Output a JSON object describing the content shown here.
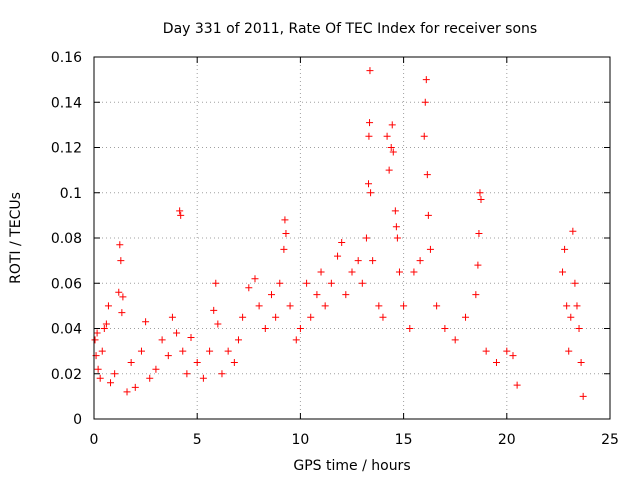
{
  "chart_data": {
    "type": "scatter",
    "title": "Day 331 of 2011, Rate Of TEC Index for receiver sons",
    "xlabel": "GPS time / hours",
    "ylabel": "ROTI / TECUs",
    "xlim": [
      0,
      25
    ],
    "ylim": [
      0,
      0.16
    ],
    "xticks": [
      0,
      5,
      10,
      15,
      20,
      25
    ],
    "xtick_labels": [
      "0",
      "5",
      "10",
      "15",
      "20",
      "25"
    ],
    "yticks": [
      0,
      0.02,
      0.04,
      0.06,
      0.08,
      0.1,
      0.12,
      0.14,
      0.16
    ],
    "ytick_labels": [
      "0",
      "0.02",
      "0.04",
      "0.06",
      "0.08",
      "0.1",
      "0.12",
      "0.14",
      "0.16"
    ],
    "grid": true,
    "marker": "+",
    "color": "#ff0000",
    "series": [
      {
        "points": [
          [
            0.05,
            0.035
          ],
          [
            0.1,
            0.028
          ],
          [
            0.15,
            0.038
          ],
          [
            0.2,
            0.022
          ],
          [
            0.3,
            0.018
          ],
          [
            0.4,
            0.03
          ],
          [
            0.5,
            0.04
          ],
          [
            0.6,
            0.042
          ],
          [
            0.7,
            0.05
          ],
          [
            0.8,
            0.016
          ],
          [
            1.0,
            0.02
          ],
          [
            1.2,
            0.056
          ],
          [
            1.25,
            0.077
          ],
          [
            1.3,
            0.07
          ],
          [
            1.35,
            0.047
          ],
          [
            1.4,
            0.054
          ],
          [
            1.6,
            0.012
          ],
          [
            1.8,
            0.025
          ],
          [
            2.0,
            0.014
          ],
          [
            2.3,
            0.03
          ],
          [
            2.5,
            0.043
          ],
          [
            2.7,
            0.018
          ],
          [
            3.0,
            0.022
          ],
          [
            3.3,
            0.035
          ],
          [
            3.6,
            0.028
          ],
          [
            3.8,
            0.045
          ],
          [
            4.0,
            0.038
          ],
          [
            4.15,
            0.092
          ],
          [
            4.2,
            0.09
          ],
          [
            4.3,
            0.03
          ],
          [
            4.5,
            0.02
          ],
          [
            4.7,
            0.036
          ],
          [
            5.0,
            0.025
          ],
          [
            5.3,
            0.018
          ],
          [
            5.6,
            0.03
          ],
          [
            5.8,
            0.048
          ],
          [
            5.9,
            0.06
          ],
          [
            6.0,
            0.042
          ],
          [
            6.2,
            0.02
          ],
          [
            6.5,
            0.03
          ],
          [
            6.8,
            0.025
          ],
          [
            7.0,
            0.035
          ],
          [
            7.2,
            0.045
          ],
          [
            7.5,
            0.058
          ],
          [
            7.8,
            0.062
          ],
          [
            8.0,
            0.05
          ],
          [
            8.3,
            0.04
          ],
          [
            8.6,
            0.055
          ],
          [
            8.8,
            0.045
          ],
          [
            9.0,
            0.06
          ],
          [
            9.2,
            0.075
          ],
          [
            9.25,
            0.088
          ],
          [
            9.3,
            0.082
          ],
          [
            9.5,
            0.05
          ],
          [
            9.8,
            0.035
          ],
          [
            10.0,
            0.04
          ],
          [
            10.3,
            0.06
          ],
          [
            10.5,
            0.045
          ],
          [
            10.8,
            0.055
          ],
          [
            11.0,
            0.065
          ],
          [
            11.2,
            0.05
          ],
          [
            11.5,
            0.06
          ],
          [
            11.8,
            0.072
          ],
          [
            12.0,
            0.078
          ],
          [
            12.2,
            0.055
          ],
          [
            12.5,
            0.065
          ],
          [
            12.8,
            0.07
          ],
          [
            13.0,
            0.06
          ],
          [
            13.2,
            0.08
          ],
          [
            13.3,
            0.104
          ],
          [
            13.32,
            0.125
          ],
          [
            13.35,
            0.131
          ],
          [
            13.37,
            0.154
          ],
          [
            13.4,
            0.1
          ],
          [
            13.5,
            0.07
          ],
          [
            13.8,
            0.05
          ],
          [
            14.0,
            0.045
          ],
          [
            14.2,
            0.125
          ],
          [
            14.3,
            0.11
          ],
          [
            14.4,
            0.12
          ],
          [
            14.45,
            0.13
          ],
          [
            14.5,
            0.118
          ],
          [
            14.6,
            0.092
          ],
          [
            14.65,
            0.085
          ],
          [
            14.7,
            0.08
          ],
          [
            14.8,
            0.065
          ],
          [
            15.0,
            0.05
          ],
          [
            15.3,
            0.04
          ],
          [
            15.5,
            0.065
          ],
          [
            15.8,
            0.07
          ],
          [
            16.0,
            0.125
          ],
          [
            16.05,
            0.14
          ],
          [
            16.1,
            0.15
          ],
          [
            16.15,
            0.108
          ],
          [
            16.2,
            0.09
          ],
          [
            16.3,
            0.075
          ],
          [
            16.6,
            0.05
          ],
          [
            17.0,
            0.04
          ],
          [
            17.5,
            0.035
          ],
          [
            18.0,
            0.045
          ],
          [
            18.5,
            0.055
          ],
          [
            18.6,
            0.068
          ],
          [
            18.65,
            0.082
          ],
          [
            18.7,
            0.1
          ],
          [
            18.75,
            0.097
          ],
          [
            19.0,
            0.03
          ],
          [
            19.5,
            0.025
          ],
          [
            20.0,
            0.03
          ],
          [
            20.3,
            0.028
          ],
          [
            20.5,
            0.015
          ],
          [
            22.7,
            0.065
          ],
          [
            22.8,
            0.075
          ],
          [
            22.9,
            0.05
          ],
          [
            23.0,
            0.03
          ],
          [
            23.1,
            0.045
          ],
          [
            23.2,
            0.083
          ],
          [
            23.3,
            0.06
          ],
          [
            23.4,
            0.05
          ],
          [
            23.5,
            0.04
          ],
          [
            23.6,
            0.025
          ],
          [
            23.7,
            0.01
          ]
        ]
      }
    ]
  }
}
